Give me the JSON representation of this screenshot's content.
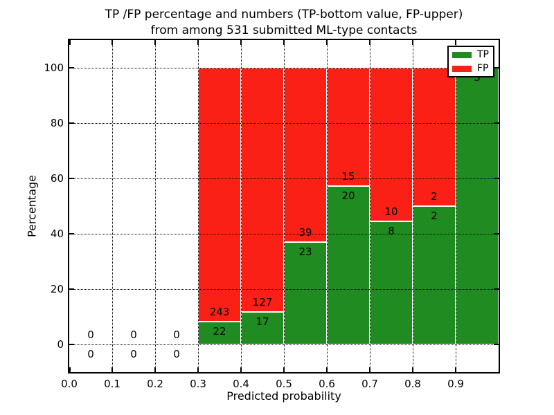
{
  "title": {
    "line1": "TP /FP percentage and numbers (TP-bottom value, FP-upper)",
    "line2": "from among 531 submitted ML-type contacts"
  },
  "colors": {
    "tp_green": "#208b20",
    "fp_red": "#fb2015",
    "text": "#000000",
    "background": "#ffffff"
  },
  "chart_data": {
    "type": "bar",
    "stacked": true,
    "normalized_to_percent": true,
    "title": "TP /FP percentage and numbers (TP-bottom value, FP-upper) from among 531 submitted ML-type contacts",
    "xlabel": "Predicted probability",
    "ylabel": "Percentage",
    "xlim": [
      0.0,
      1.0
    ],
    "ylim": [
      -10,
      110
    ],
    "x_ticks": [
      0.0,
      0.1,
      0.2,
      0.3,
      0.4,
      0.5,
      0.6,
      0.7,
      0.8,
      0.9
    ],
    "x_tick_labels": [
      "0.0",
      "0.1",
      "0.2",
      "0.3",
      "0.4",
      "0.5",
      "0.6",
      "0.7",
      "0.8",
      "0.9"
    ],
    "y_ticks": [
      0,
      20,
      40,
      60,
      80,
      100
    ],
    "y_tick_labels": [
      "0",
      "20",
      "40",
      "60",
      "80",
      "100"
    ],
    "grid": "dotted, drawn over bars",
    "total_contacts": 531,
    "legend": {
      "position": "upper right",
      "entries": [
        {
          "label": "TP",
          "color": "#208b20"
        },
        {
          "label": "FP",
          "color": "#fb2015"
        }
      ]
    },
    "series_note": "each bin stacked to 100%: TP (green, bottom) + FP (red, top); labels show raw counts, FP above boundary, TP below",
    "bins": [
      {
        "range": [
          0.0,
          0.1
        ],
        "tp": 0,
        "fp": 0
      },
      {
        "range": [
          0.1,
          0.2
        ],
        "tp": 0,
        "fp": 0
      },
      {
        "range": [
          0.2,
          0.3
        ],
        "tp": 0,
        "fp": 0
      },
      {
        "range": [
          0.3,
          0.4
        ],
        "tp": 22,
        "fp": 243
      },
      {
        "range": [
          0.4,
          0.5
        ],
        "tp": 17,
        "fp": 127
      },
      {
        "range": [
          0.5,
          0.6
        ],
        "tp": 23,
        "fp": 39
      },
      {
        "range": [
          0.6,
          0.7
        ],
        "tp": 20,
        "fp": 15
      },
      {
        "range": [
          0.7,
          0.8
        ],
        "tp": 8,
        "fp": 10
      },
      {
        "range": [
          0.8,
          0.9
        ],
        "tp": 2,
        "fp": 2
      },
      {
        "range": [
          0.9,
          1.0
        ],
        "tp": 3,
        "fp": 0
      }
    ]
  }
}
